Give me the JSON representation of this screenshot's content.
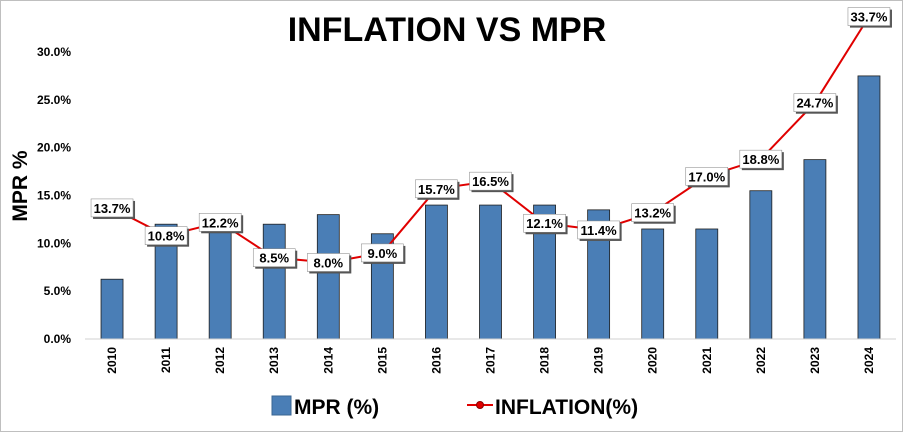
{
  "chart_data": {
    "type": "bar",
    "title": "INFLATION VS MPR",
    "ylabel": "MPR %",
    "xlabel": "",
    "ylim": [
      0,
      30
    ],
    "yticks": [
      0,
      5,
      10,
      15,
      20,
      25,
      30
    ],
    "ytick_labels": [
      "0.0%",
      "5.0%",
      "10.0%",
      "15.0%",
      "20.0%",
      "25.0%",
      "30.0%"
    ],
    "grid": false,
    "legend_position": "bottom",
    "categories": [
      "2010",
      "2011",
      "2012",
      "2013",
      "2014",
      "2015",
      "2016",
      "2017",
      "2018",
      "2019",
      "2020",
      "2021",
      "2022",
      "2023",
      "2024"
    ],
    "series": [
      {
        "name": "MPR (%)",
        "type": "bar",
        "color": "#4A7EB6",
        "values": [
          6.25,
          12.0,
          12.0,
          12.0,
          13.0,
          11.0,
          14.0,
          14.0,
          14.0,
          13.5,
          11.5,
          11.5,
          15.5,
          18.75,
          27.5
        ]
      },
      {
        "name": "INFLATION(%)",
        "type": "line",
        "color": "#E00000",
        "values": [
          13.7,
          10.8,
          12.2,
          8.5,
          8.0,
          9.0,
          15.7,
          16.5,
          12.1,
          11.4,
          13.2,
          17.0,
          18.8,
          24.7,
          33.7
        ],
        "labels": [
          "13.7%",
          "10.8%",
          "12.2%",
          "8.5%",
          "8.0%",
          "9.0%",
          "15.7%",
          "16.5%",
          "12.1%",
          "11.4%",
          "13.2%",
          "17.0%",
          "18.8%",
          "24.7%",
          "33.7%"
        ]
      }
    ]
  }
}
